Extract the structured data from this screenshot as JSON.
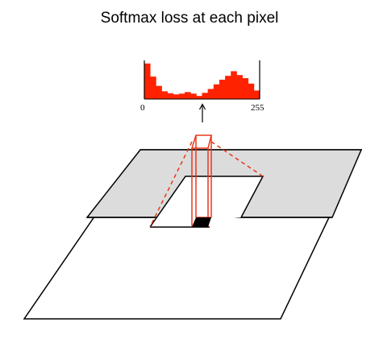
{
  "title": "Softmax loss at each pixel",
  "histogram": {
    "x_min_label": "0",
    "x_max_label": "255",
    "bar_color": "#ff2200",
    "values": [
      0.92,
      0.58,
      0.34,
      0.2,
      0.15,
      0.12,
      0.14,
      0.18,
      0.14,
      0.08,
      0.16,
      0.26,
      0.38,
      0.5,
      0.6,
      0.72,
      0.62,
      0.54,
      0.4,
      0.22
    ]
  },
  "colors": {
    "outline": "#000000",
    "shaded_region": "#dcdcdc",
    "pixel_column": "#e8381a",
    "selected_pixel": "#000000"
  }
}
